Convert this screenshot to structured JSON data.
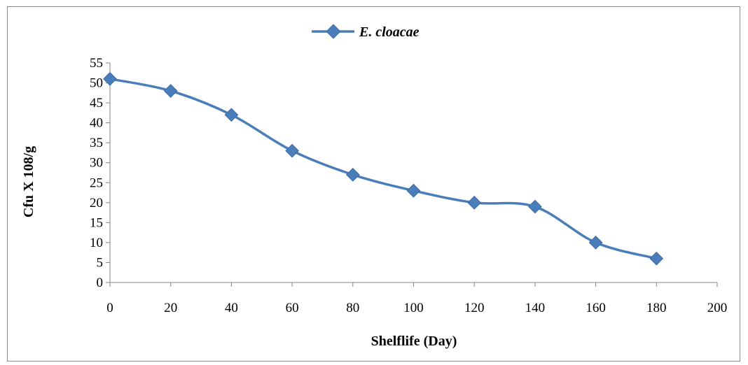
{
  "chart_data": {
    "type": "line",
    "title": "",
    "xlabel": "Shelflife (Day)",
    "ylabel": "Cfu X 108/g",
    "xlim": [
      0,
      200
    ],
    "ylim": [
      0,
      55
    ],
    "x_ticks": [
      0,
      20,
      40,
      60,
      80,
      100,
      120,
      140,
      160,
      180,
      200
    ],
    "y_ticks": [
      0,
      5,
      10,
      15,
      20,
      25,
      30,
      35,
      40,
      45,
      50,
      55
    ],
    "grid": false,
    "legend_position": "top-center",
    "smooth": true,
    "series": [
      {
        "name": "E. cloacae",
        "color": "#4a7ebb",
        "marker": "diamond",
        "x": [
          0,
          20,
          40,
          60,
          80,
          100,
          120,
          140,
          160,
          180
        ],
        "y": [
          51,
          48,
          42,
          33,
          27,
          23,
          20,
          19,
          10,
          6
        ]
      }
    ]
  }
}
